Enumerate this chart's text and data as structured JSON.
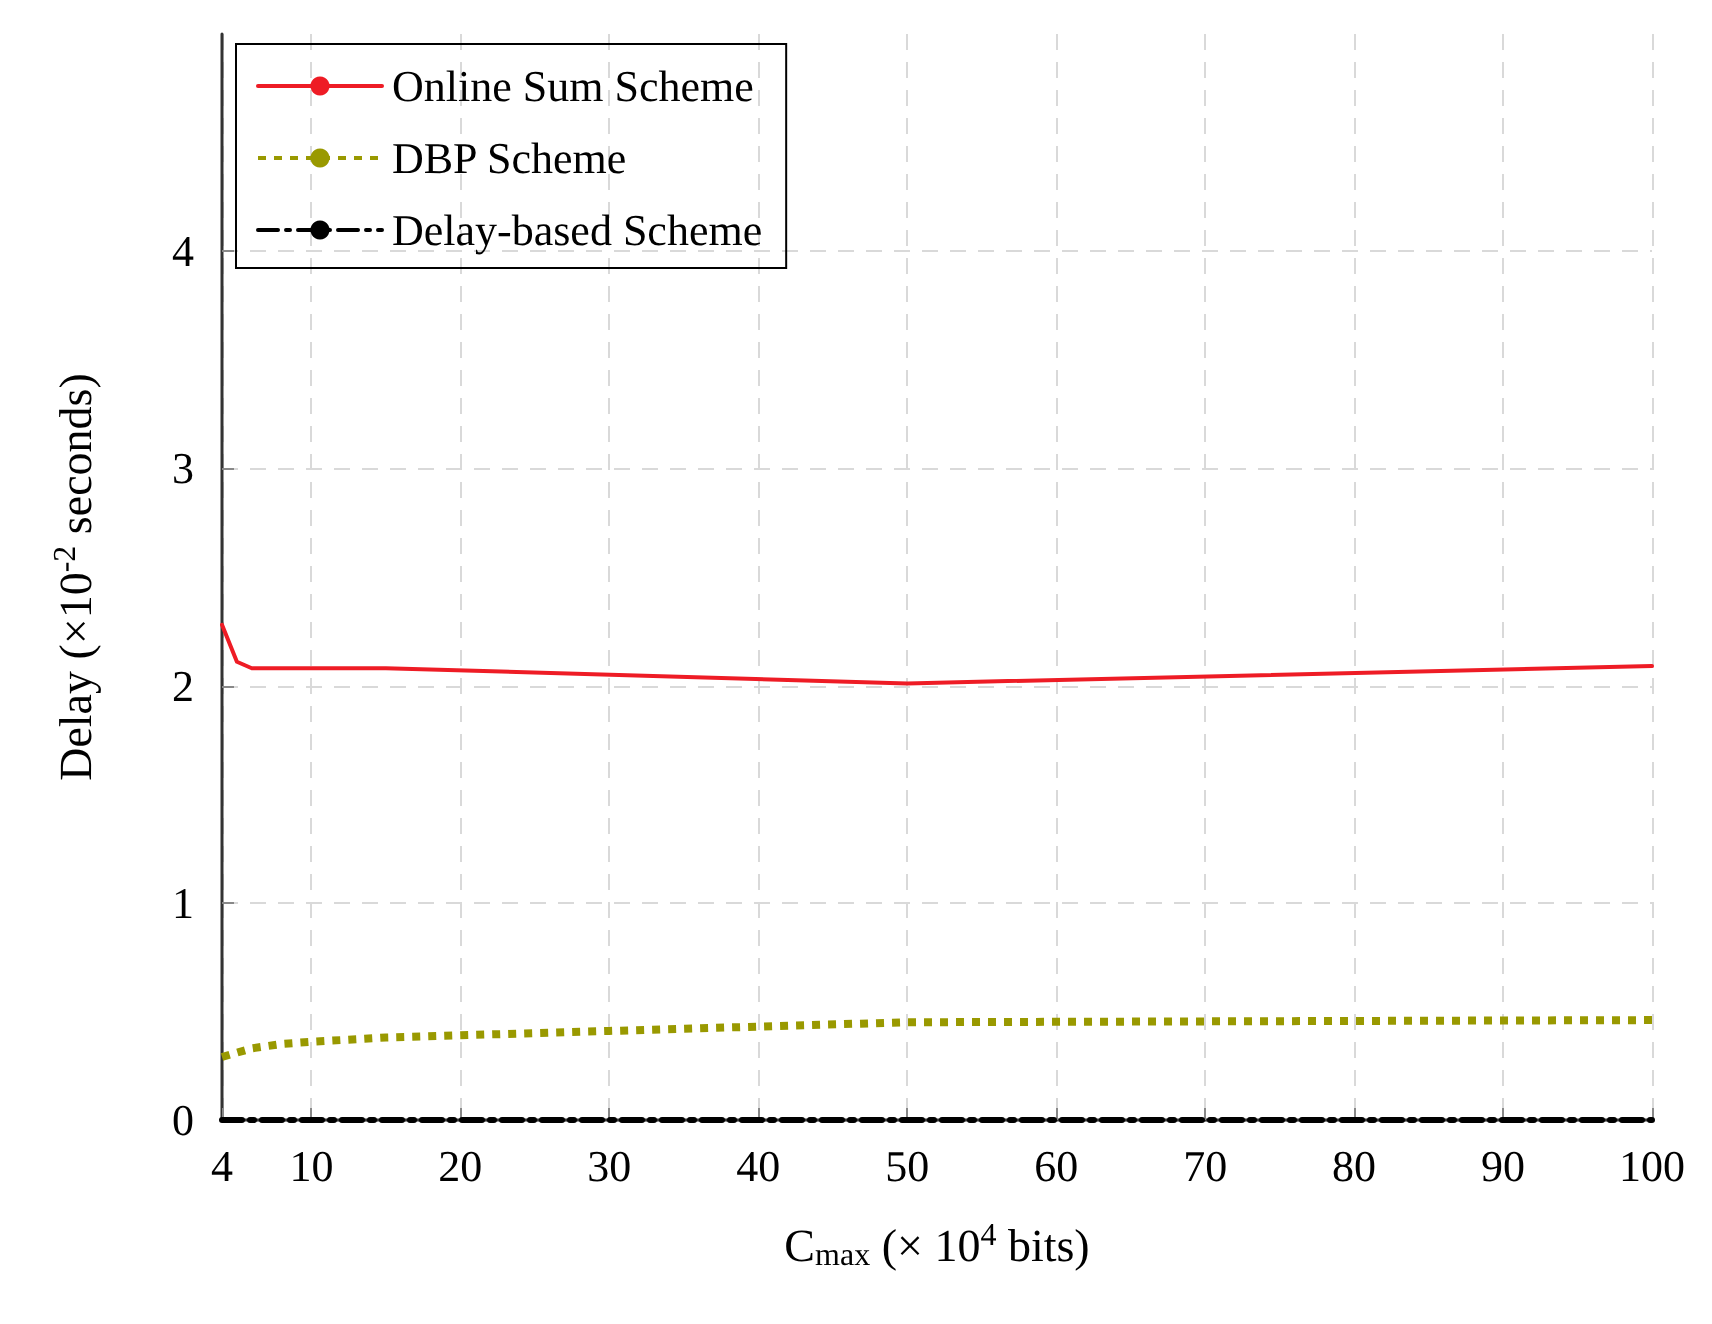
{
  "chart_data": {
    "type": "line",
    "xlabel": "C$_{max}$ (× 10$^{4}$ bits)",
    "ylabel": "Delay (×10$^{-2}$ seconds)",
    "xlim": [
      4,
      100
    ],
    "xticks": [
      4,
      10,
      20,
      30,
      40,
      50,
      60,
      70,
      80,
      90,
      100
    ],
    "ylim": [
      0,
      5
    ],
    "yticks": [
      0,
      1,
      2,
      3,
      4
    ],
    "grid": true,
    "legend": "top left",
    "marker": "none",
    "series": [
      {
        "name": "Online Sum Scheme",
        "color": "#ee1c25",
        "line_style": "solid",
        "x": [
          4,
          5,
          6,
          10,
          15,
          50,
          100
        ],
        "values": [
          2.28,
          2.11,
          2.08,
          2.08,
          2.08,
          2.01,
          2.09
        ]
      },
      {
        "name": "DBP Scheme",
        "color": "#999900",
        "line_style": "dotted",
        "x": [
          4,
          6,
          8,
          10,
          15,
          20,
          30,
          40,
          50,
          100
        ],
        "values": [
          0.29,
          0.33,
          0.35,
          0.36,
          0.38,
          0.39,
          0.41,
          0.43,
          0.45,
          0.46
        ]
      },
      {
        "name": "Delay-based Scheme",
        "color": "#000000",
        "line_style": "dashdot",
        "x": [
          4,
          100
        ],
        "values": [
          0,
          0
        ]
      }
    ]
  }
}
